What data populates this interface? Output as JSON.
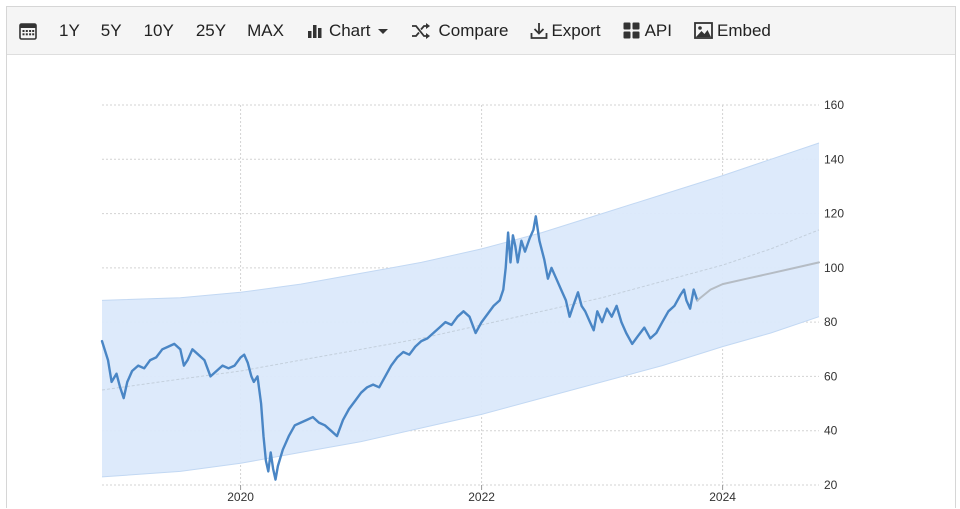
{
  "toolbar": {
    "calendar_icon": "calendar-icon",
    "ranges": [
      "1Y",
      "5Y",
      "10Y",
      "25Y",
      "MAX"
    ],
    "chart_label": "Chart",
    "compare_label": "Compare",
    "export_label": "Export",
    "api_label": "API",
    "embed_label": "Embed"
  },
  "colors": {
    "line": "#4a86c5",
    "band": "#dbe9fb",
    "band_edge": "#c2d8f3",
    "trend": "#c3cfdc",
    "forecast": "#b5bcc4",
    "grid": "#d3d3d3"
  },
  "chart_data": {
    "type": "line",
    "title": "",
    "xlabel": "",
    "ylabel": "",
    "x_ticks": [
      "2020",
      "2022",
      "2024"
    ],
    "y_ticks": [
      20,
      40,
      60,
      80,
      100,
      120,
      140,
      160
    ],
    "ylim": [
      20,
      160
    ],
    "xlim": [
      2018.85,
      2024.8
    ],
    "grid": true,
    "y_axis_side": "right",
    "series": [
      {
        "role": "actual",
        "points": [
          [
            2018.85,
            73
          ],
          [
            2018.9,
            66
          ],
          [
            2018.93,
            58
          ],
          [
            2018.97,
            61
          ],
          [
            2019.0,
            56
          ],
          [
            2019.03,
            52
          ],
          [
            2019.06,
            58
          ],
          [
            2019.1,
            62
          ],
          [
            2019.15,
            64
          ],
          [
            2019.2,
            63
          ],
          [
            2019.25,
            66
          ],
          [
            2019.3,
            67
          ],
          [
            2019.35,
            70
          ],
          [
            2019.4,
            71
          ],
          [
            2019.45,
            72
          ],
          [
            2019.5,
            70
          ],
          [
            2019.53,
            64
          ],
          [
            2019.56,
            66
          ],
          [
            2019.6,
            70
          ],
          [
            2019.65,
            68
          ],
          [
            2019.7,
            66
          ],
          [
            2019.75,
            60
          ],
          [
            2019.8,
            62
          ],
          [
            2019.85,
            64
          ],
          [
            2019.9,
            63
          ],
          [
            2019.95,
            64
          ],
          [
            2020.0,
            67
          ],
          [
            2020.03,
            68
          ],
          [
            2020.06,
            65
          ],
          [
            2020.09,
            60
          ],
          [
            2020.11,
            58
          ],
          [
            2020.14,
            60
          ],
          [
            2020.17,
            50
          ],
          [
            2020.19,
            38
          ],
          [
            2020.21,
            29
          ],
          [
            2020.23,
            25
          ],
          [
            2020.25,
            32
          ],
          [
            2020.27,
            26
          ],
          [
            2020.29,
            22
          ],
          [
            2020.31,
            27
          ],
          [
            2020.35,
            33
          ],
          [
            2020.4,
            38
          ],
          [
            2020.45,
            42
          ],
          [
            2020.5,
            43
          ],
          [
            2020.55,
            44
          ],
          [
            2020.6,
            45
          ],
          [
            2020.65,
            43
          ],
          [
            2020.7,
            42
          ],
          [
            2020.75,
            40
          ],
          [
            2020.8,
            38
          ],
          [
            2020.85,
            44
          ],
          [
            2020.9,
            48
          ],
          [
            2020.95,
            51
          ],
          [
            2021.0,
            54
          ],
          [
            2021.05,
            56
          ],
          [
            2021.1,
            57
          ],
          [
            2021.15,
            56
          ],
          [
            2021.2,
            60
          ],
          [
            2021.25,
            64
          ],
          [
            2021.3,
            67
          ],
          [
            2021.35,
            69
          ],
          [
            2021.4,
            68
          ],
          [
            2021.45,
            71
          ],
          [
            2021.5,
            73
          ],
          [
            2021.55,
            74
          ],
          [
            2021.6,
            76
          ],
          [
            2021.65,
            78
          ],
          [
            2021.7,
            80
          ],
          [
            2021.75,
            79
          ],
          [
            2021.8,
            82
          ],
          [
            2021.85,
            84
          ],
          [
            2021.9,
            82
          ],
          [
            2021.95,
            76
          ],
          [
            2022.0,
            80
          ],
          [
            2022.05,
            83
          ],
          [
            2022.1,
            86
          ],
          [
            2022.15,
            88
          ],
          [
            2022.18,
            92
          ],
          [
            2022.2,
            100
          ],
          [
            2022.22,
            113
          ],
          [
            2022.24,
            102
          ],
          [
            2022.26,
            112
          ],
          [
            2022.28,
            108
          ],
          [
            2022.3,
            102
          ],
          [
            2022.33,
            110
          ],
          [
            2022.36,
            106
          ],
          [
            2022.4,
            111
          ],
          [
            2022.43,
            114
          ],
          [
            2022.45,
            119
          ],
          [
            2022.48,
            110
          ],
          [
            2022.52,
            103
          ],
          [
            2022.55,
            96
          ],
          [
            2022.58,
            100
          ],
          [
            2022.62,
            96
          ],
          [
            2022.66,
            92
          ],
          [
            2022.7,
            88
          ],
          [
            2022.73,
            82
          ],
          [
            2022.76,
            86
          ],
          [
            2022.8,
            91
          ],
          [
            2022.83,
            86
          ],
          [
            2022.86,
            84
          ],
          [
            2022.9,
            80
          ],
          [
            2022.93,
            77
          ],
          [
            2022.96,
            84
          ],
          [
            2023.0,
            80
          ],
          [
            2023.04,
            85
          ],
          [
            2023.08,
            82
          ],
          [
            2023.12,
            86
          ],
          [
            2023.16,
            80
          ],
          [
            2023.2,
            76
          ],
          [
            2023.25,
            72
          ],
          [
            2023.3,
            75
          ],
          [
            2023.35,
            78
          ],
          [
            2023.4,
            74
          ],
          [
            2023.45,
            76
          ],
          [
            2023.5,
            80
          ],
          [
            2023.55,
            84
          ],
          [
            2023.6,
            86
          ],
          [
            2023.65,
            90
          ],
          [
            2023.68,
            92
          ],
          [
            2023.7,
            88
          ],
          [
            2023.73,
            85
          ],
          [
            2023.76,
            92
          ],
          [
            2023.79,
            88
          ]
        ]
      },
      {
        "role": "forecast",
        "points": [
          [
            2023.79,
            88
          ],
          [
            2023.9,
            92
          ],
          [
            2024.0,
            94
          ],
          [
            2024.2,
            96
          ],
          [
            2024.4,
            98
          ],
          [
            2024.6,
            100
          ],
          [
            2024.8,
            102
          ]
        ]
      }
    ],
    "trend": {
      "points": [
        [
          2018.85,
          55
        ],
        [
          2019.5,
          59
        ],
        [
          2020.0,
          62
        ],
        [
          2020.5,
          66
        ],
        [
          2021.0,
          70
        ],
        [
          2021.5,
          74
        ],
        [
          2022.0,
          79
        ],
        [
          2022.5,
          84
        ],
        [
          2023.0,
          89
        ],
        [
          2023.5,
          95
        ],
        [
          2024.0,
          101
        ],
        [
          2024.4,
          107
        ],
        [
          2024.8,
          114
        ]
      ]
    },
    "band": {
      "upper": [
        [
          2018.85,
          88
        ],
        [
          2019.5,
          89
        ],
        [
          2020.0,
          91
        ],
        [
          2020.5,
          94
        ],
        [
          2021.0,
          98
        ],
        [
          2021.5,
          102
        ],
        [
          2022.0,
          107
        ],
        [
          2022.5,
          113
        ],
        [
          2023.0,
          120
        ],
        [
          2023.5,
          127
        ],
        [
          2024.0,
          134
        ],
        [
          2024.4,
          140
        ],
        [
          2024.8,
          146
        ]
      ],
      "lower": [
        [
          2018.85,
          23
        ],
        [
          2019.5,
          25
        ],
        [
          2020.0,
          28
        ],
        [
          2020.5,
          32
        ],
        [
          2021.0,
          36
        ],
        [
          2021.5,
          41
        ],
        [
          2022.0,
          46
        ],
        [
          2022.5,
          52
        ],
        [
          2023.0,
          58
        ],
        [
          2023.5,
          64
        ],
        [
          2024.0,
          71
        ],
        [
          2024.4,
          76
        ],
        [
          2024.8,
          82
        ]
      ]
    }
  }
}
